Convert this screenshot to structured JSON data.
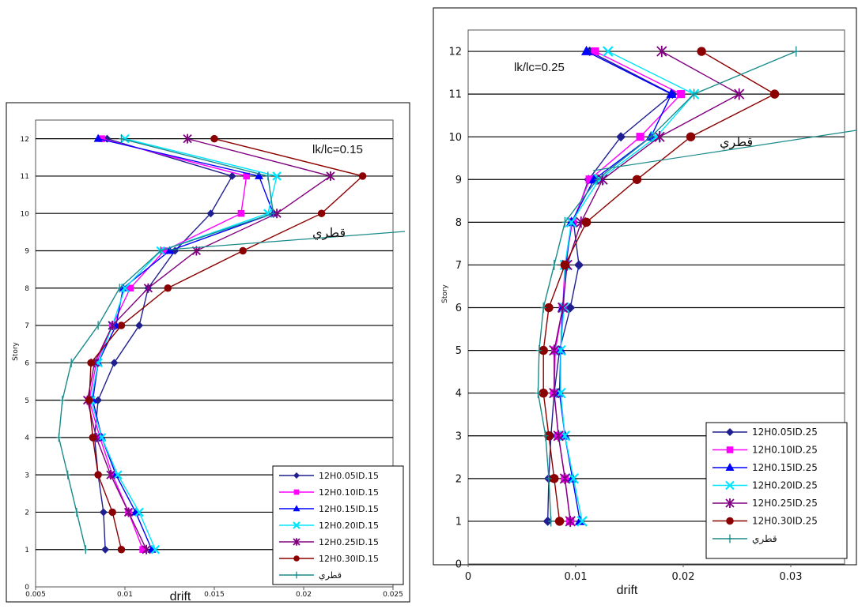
{
  "colors": {
    "s1": "#1f1f8f",
    "s2": "#ff00ff",
    "s3": "#0000ff",
    "s4": "#00e5ff",
    "s5": "#800080",
    "s6": "#8b0000",
    "s7": "#1a8a8a",
    "grid": "#000000",
    "frame": "#000000"
  },
  "chart_data": [
    {
      "type": "line",
      "title": "",
      "xlabel": "drift",
      "ylabel": "Story",
      "annotation": "lk/lc=0.15",
      "callout_text": "قطري",
      "xlim": [
        0.005,
        0.025
      ],
      "ylim": [
        0,
        12.5
      ],
      "xticks": [
        "0.005",
        "0.01",
        "0.015",
        "0.02",
        "0.025"
      ],
      "yticks": [
        "0",
        "1",
        "2",
        "3",
        "4",
        "5",
        "6",
        "7",
        "8",
        "9",
        "10",
        "11",
        "12"
      ],
      "grid": "horizontal",
      "legend_position": "bottom-right",
      "series": [
        {
          "name": "12H0.05ID.15",
          "marker": "diamond",
          "color_key": "s1",
          "x": [
            0.0089,
            0.0088,
            0.0085,
            0.0083,
            0.0085,
            0.0094,
            0.0108,
            0.0113,
            0.0128,
            0.0148,
            0.016,
            0.009
          ],
          "y": [
            1,
            2,
            3,
            4,
            5,
            6,
            7,
            8,
            9,
            10,
            11,
            12
          ]
        },
        {
          "name": "12H0.10ID.15",
          "marker": "square",
          "color_key": "s2",
          "x": [
            0.011,
            0.0102,
            0.0093,
            0.0086,
            0.008,
            0.0084,
            0.0093,
            0.0103,
            0.0122,
            0.0165,
            0.0168,
            0.0087
          ],
          "y": [
            1,
            2,
            3,
            4,
            5,
            6,
            7,
            8,
            9,
            10,
            11,
            12
          ]
        },
        {
          "name": "12H0.15ID.15",
          "marker": "triangle",
          "color_key": "s3",
          "x": [
            0.0115,
            0.0106,
            0.0095,
            0.0087,
            0.0082,
            0.0085,
            0.0095,
            0.0099,
            0.0125,
            0.0183,
            0.0175,
            0.0085
          ],
          "y": [
            1,
            2,
            3,
            4,
            5,
            6,
            7,
            8,
            9,
            10,
            11,
            12
          ]
        },
        {
          "name": "12H0.20ID.15",
          "marker": "x",
          "color_key": "s4",
          "x": [
            0.0117,
            0.0108,
            0.0096,
            0.0087,
            0.0081,
            0.0085,
            0.0093,
            0.01,
            0.012,
            0.018,
            0.0185,
            0.01
          ],
          "y": [
            1,
            2,
            3,
            4,
            5,
            6,
            7,
            8,
            9,
            10,
            11,
            12
          ]
        },
        {
          "name": "12H0.25ID.15",
          "marker": "star",
          "color_key": "s5",
          "x": [
            0.0112,
            0.0102,
            0.0092,
            0.0084,
            0.0079,
            0.0083,
            0.0093,
            0.0113,
            0.014,
            0.0185,
            0.0215,
            0.0135
          ],
          "y": [
            1,
            2,
            3,
            4,
            5,
            6,
            7,
            8,
            9,
            10,
            11,
            12
          ]
        },
        {
          "name": "12H0.30ID.15",
          "marker": "circle",
          "color_key": "s6",
          "x": [
            0.0098,
            0.0093,
            0.0085,
            0.0082,
            0.008,
            0.0081,
            0.0098,
            0.0124,
            0.0166,
            0.021,
            0.0233,
            0.015
          ],
          "y": [
            1,
            2,
            3,
            4,
            5,
            6,
            7,
            8,
            9,
            10,
            11,
            12
          ]
        },
        {
          "name": "قطري",
          "marker": "plus",
          "color_key": "s7",
          "x": [
            0.0078,
            0.0073,
            0.0068,
            0.0063,
            0.0065,
            0.007,
            0.0085,
            0.0097,
            0.012,
            0.0183,
            0.018,
            0.0098
          ],
          "y": [
            1,
            2,
            3,
            4,
            5,
            6,
            7,
            8,
            9,
            10,
            11,
            12
          ]
        }
      ]
    },
    {
      "type": "line",
      "title": "",
      "xlabel": "drift",
      "ylabel": "Story",
      "annotation": "lk/lc=0.25",
      "callout_text": "قطري",
      "xlim": [
        0,
        0.035
      ],
      "ylim": [
        0,
        12.5
      ],
      "xticks": [
        "0",
        "0.01",
        "0.02",
        "0.03"
      ],
      "yticks": [
        "0",
        "1",
        "2",
        "3",
        "4",
        "5",
        "6",
        "7",
        "8",
        "9",
        "10",
        "11",
        "12"
      ],
      "grid": "horizontal",
      "legend_position": "bottom-right",
      "series": [
        {
          "name": "12H0.05ID.25",
          "marker": "diamond",
          "color_key": "s1",
          "x": [
            0.0074,
            0.0075,
            0.0077,
            0.008,
            0.0085,
            0.0095,
            0.0103,
            0.0098,
            0.0112,
            0.0142,
            0.019,
            0.0113
          ],
          "y": [
            1,
            2,
            3,
            4,
            5,
            6,
            7,
            8,
            9,
            10,
            11,
            12
          ]
        },
        {
          "name": "12H0.10ID.25",
          "marker": "square",
          "color_key": "s2",
          "x": [
            0.0095,
            0.009,
            0.0084,
            0.008,
            0.0081,
            0.0088,
            0.009,
            0.0097,
            0.0113,
            0.016,
            0.0198,
            0.0118
          ],
          "y": [
            1,
            2,
            3,
            4,
            5,
            6,
            7,
            8,
            9,
            10,
            11,
            12
          ]
        },
        {
          "name": "12H0.15ID.25",
          "marker": "triangle",
          "color_key": "s3",
          "x": [
            0.0104,
            0.0097,
            0.009,
            0.0085,
            0.0086,
            0.0088,
            0.0091,
            0.0096,
            0.0117,
            0.017,
            0.0189,
            0.011
          ],
          "y": [
            1,
            2,
            3,
            4,
            5,
            6,
            7,
            8,
            9,
            10,
            11,
            12
          ]
        },
        {
          "name": "12H0.20ID.25",
          "marker": "x",
          "color_key": "s4",
          "x": [
            0.0106,
            0.0098,
            0.009,
            0.0086,
            0.0086,
            0.0089,
            0.009,
            0.0096,
            0.0122,
            0.0175,
            0.021,
            0.013
          ],
          "y": [
            1,
            2,
            3,
            4,
            5,
            6,
            7,
            8,
            9,
            10,
            11,
            12
          ]
        },
        {
          "name": "12H0.25ID.25",
          "marker": "star",
          "color_key": "s5",
          "x": [
            0.0095,
            0.009,
            0.0084,
            0.008,
            0.008,
            0.0088,
            0.0092,
            0.0105,
            0.0125,
            0.0178,
            0.0252,
            0.018
          ],
          "y": [
            1,
            2,
            3,
            4,
            5,
            6,
            7,
            8,
            9,
            10,
            11,
            12
          ]
        },
        {
          "name": "12H0.30ID.25",
          "marker": "circle",
          "color_key": "s6",
          "x": [
            0.0085,
            0.008,
            0.0075,
            0.007,
            0.007,
            0.0075,
            0.009,
            0.011,
            0.0157,
            0.0207,
            0.0285,
            0.0217
          ],
          "y": [
            1,
            2,
            3,
            4,
            5,
            6,
            7,
            8,
            9,
            10,
            11,
            12
          ]
        },
        {
          "name": "قطري",
          "marker": "plus",
          "color_key": "s7",
          "x": [
            0.0077,
            0.0075,
            0.0072,
            0.0065,
            0.0066,
            0.007,
            0.008,
            0.009,
            0.012,
            0.017,
            0.021,
            0.0305
          ],
          "y": [
            1,
            2,
            3,
            4,
            5,
            6,
            7,
            8,
            9,
            10,
            11,
            12
          ]
        }
      ]
    }
  ]
}
